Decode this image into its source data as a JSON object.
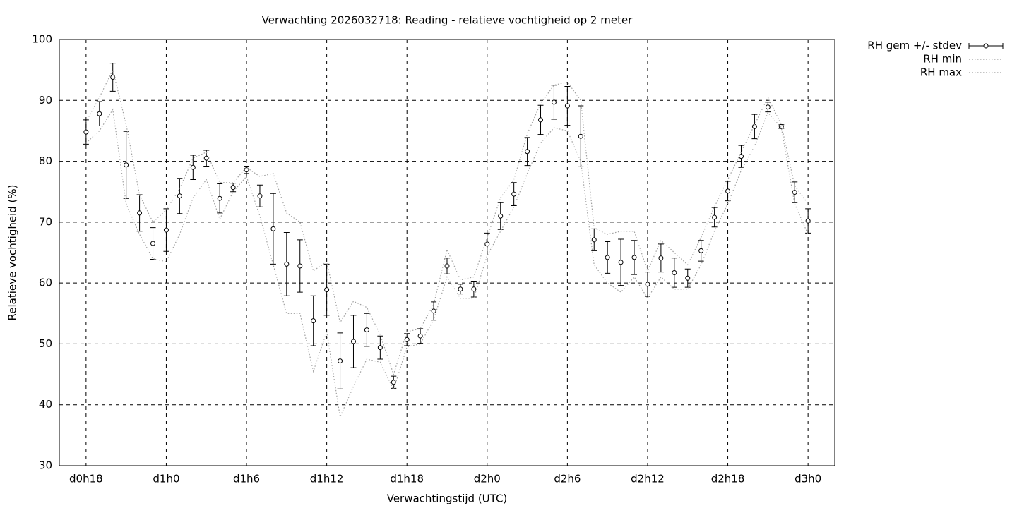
{
  "chart_data": {
    "type": "errorbar",
    "title": "Verwachting 2026032718: Reading - relatieve vochtigheid op 2 meter",
    "x_label": "Verwachtingstijd (UTC)",
    "y_label": "Relatieve vochtigheid (%)",
    "x": [
      18,
      19,
      20,
      21,
      22,
      23,
      24,
      25,
      26,
      27,
      28,
      29,
      30,
      31,
      32,
      33,
      34,
      35,
      36,
      37,
      38,
      39,
      40,
      41,
      42,
      43,
      44,
      45,
      46,
      47,
      48,
      49,
      50,
      51,
      52,
      53,
      54,
      55,
      56,
      57,
      58,
      59,
      60,
      61,
      62,
      63,
      64,
      65,
      66,
      67,
      68,
      69,
      70,
      71,
      72
    ],
    "series": [
      {
        "name": "RH gem +/- stdev",
        "color": "#000000",
        "style": "errorbars",
        "values": [
          84.8,
          87.8,
          93.8,
          79.4,
          71.5,
          66.5,
          68.7,
          74.3,
          79.0,
          80.5,
          73.9,
          75.7,
          78.6,
          74.3,
          68.9,
          63.1,
          62.8,
          53.8,
          58.9,
          47.2,
          50.4,
          52.3,
          49.4,
          43.7,
          50.7,
          51.3,
          55.4,
          62.8,
          59.0,
          59.0,
          66.4,
          71.0,
          74.6,
          81.6,
          86.8,
          89.7,
          89.1,
          84.1,
          67.1,
          64.2,
          63.4,
          64.2,
          59.8,
          64.1,
          61.7,
          60.8,
          65.3,
          70.8,
          75.1,
          80.8,
          85.7,
          88.9,
          85.7,
          74.9,
          70.2
        ],
        "errors": [
          2.0,
          2.0,
          2.3,
          5.5,
          3.0,
          2.6,
          3.5,
          2.9,
          2.0,
          1.3,
          2.4,
          0.7,
          0.6,
          1.8,
          5.8,
          5.2,
          4.3,
          4.1,
          4.2,
          4.6,
          4.3,
          2.7,
          1.9,
          1.0,
          1.0,
          1.2,
          1.5,
          1.3,
          0.8,
          1.3,
          1.8,
          2.2,
          1.9,
          2.3,
          2.4,
          2.8,
          3.2,
          5.0,
          1.8,
          2.6,
          3.8,
          2.8,
          2.0,
          2.3,
          2.4,
          1.5,
          1.7,
          1.6,
          1.6,
          1.8,
          2.0,
          0.8,
          0.3,
          1.7,
          2.0
        ]
      },
      {
        "name": "RH min",
        "color": "#a0a0a0",
        "style": "dotted",
        "values": [
          83,
          85,
          88.5,
          73,
          68,
          64,
          63.5,
          68,
          74,
          77,
          70.5,
          75,
          77.5,
          71,
          63,
          55,
          55,
          45.5,
          52,
          38,
          43,
          47.5,
          47,
          42.5,
          49.5,
          50,
          54,
          61,
          57.5,
          57.5,
          64.5,
          68.5,
          72.5,
          78,
          83,
          85.5,
          85,
          80,
          63,
          60,
          58.5,
          61,
          57.5,
          61,
          59,
          59,
          63,
          68.5,
          73,
          78.5,
          82.5,
          88,
          85.5,
          73,
          68
        ]
      },
      {
        "name": "RH max",
        "color": "#a0a0a0",
        "style": "dotted",
        "values": [
          86.5,
          90.5,
          95,
          86,
          74.5,
          70,
          72,
          75.5,
          80.5,
          81.5,
          76.5,
          76.5,
          79,
          77.5,
          78,
          71.5,
          70,
          62,
          63.5,
          53.5,
          57,
          56,
          51.5,
          45,
          52,
          52.5,
          56.5,
          65.5,
          60.5,
          61,
          67.5,
          74,
          77,
          84.5,
          89.5,
          92.5,
          93,
          90,
          69,
          68,
          68.5,
          68.5,
          62,
          67,
          65,
          63,
          67.5,
          72.5,
          77,
          81.5,
          86,
          90.5,
          86,
          76,
          73
        ]
      }
    ],
    "xlim": [
      16,
      74
    ],
    "xticks": [
      {
        "value": 18,
        "label": "d0h18"
      },
      {
        "value": 24,
        "label": "d1h0"
      },
      {
        "value": 30,
        "label": "d1h6"
      },
      {
        "value": 36,
        "label": "d1h12"
      },
      {
        "value": 42,
        "label": "d1h18"
      },
      {
        "value": 48,
        "label": "d2h0"
      },
      {
        "value": 54,
        "label": "d2h6"
      },
      {
        "value": 60,
        "label": "d2h12"
      },
      {
        "value": 66,
        "label": "d2h18"
      },
      {
        "value": 72,
        "label": "d3h0"
      }
    ],
    "ylim": [
      30,
      100
    ],
    "yticks": [
      30,
      40,
      50,
      60,
      70,
      80,
      90,
      100
    ],
    "grid": true,
    "legend": "outside-top-right"
  }
}
